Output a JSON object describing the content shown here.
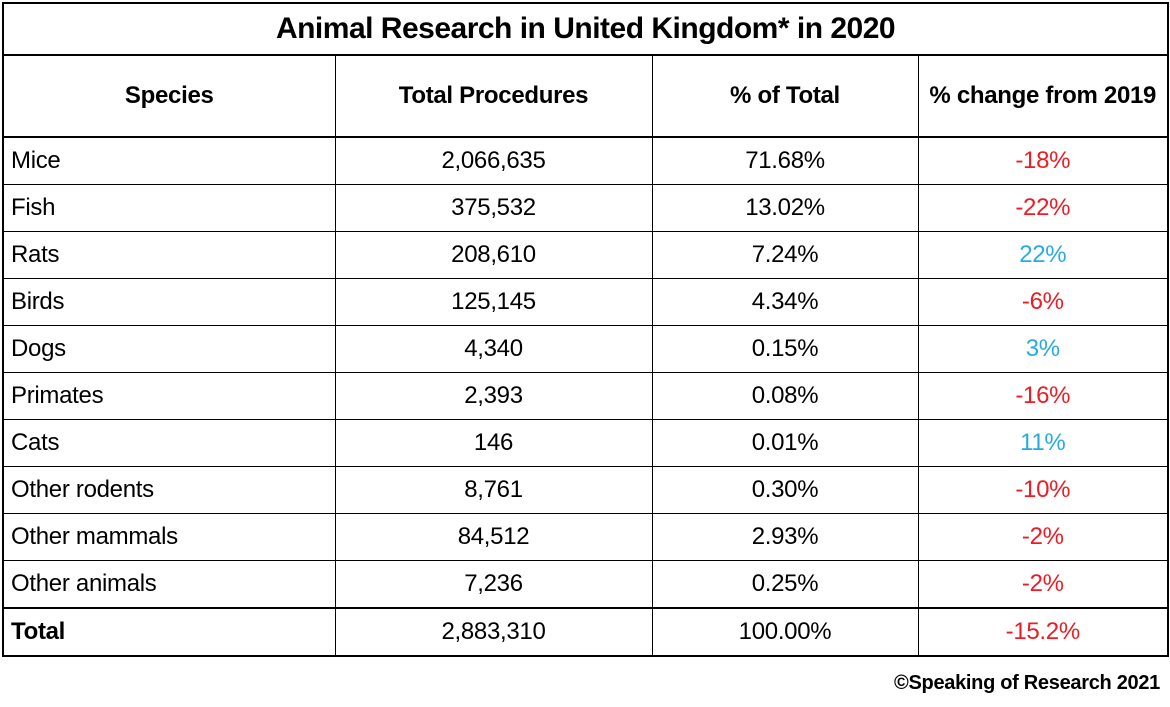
{
  "chart_data": {
    "type": "table",
    "title": "Animal Research in United Kingdom* in 2020",
    "columns": [
      "Species",
      "Total Procedures",
      "% of Total",
      "% change from 2019"
    ],
    "rows": [
      {
        "species": "Mice",
        "procedures": "2,066,635",
        "pct_of_total": "71.68%",
        "change": "-18%",
        "change_color": "red",
        "is_total": false
      },
      {
        "species": "Fish",
        "procedures": "375,532",
        "pct_of_total": "13.02%",
        "change": "-22%",
        "change_color": "red",
        "is_total": false
      },
      {
        "species": "Rats",
        "procedures": "208,610",
        "pct_of_total": "7.24%",
        "change": "22%",
        "change_color": "blue",
        "is_total": false
      },
      {
        "species": "Birds",
        "procedures": "125,145",
        "pct_of_total": "4.34%",
        "change": "-6%",
        "change_color": "red",
        "is_total": false
      },
      {
        "species": "Dogs",
        "procedures": "4,340",
        "pct_of_total": "0.15%",
        "change": "3%",
        "change_color": "blue",
        "is_total": false
      },
      {
        "species": "Primates",
        "procedures": "2,393",
        "pct_of_total": "0.08%",
        "change": "-16%",
        "change_color": "red",
        "is_total": false
      },
      {
        "species": "Cats",
        "procedures": "146",
        "pct_of_total": "0.01%",
        "change": "11%",
        "change_color": "blue",
        "is_total": false
      },
      {
        "species": "Other rodents",
        "procedures": "8,761",
        "pct_of_total": "0.30%",
        "change": "-10%",
        "change_color": "red",
        "is_total": false
      },
      {
        "species": "Other mammals",
        "procedures": "84,512",
        "pct_of_total": "2.93%",
        "change": "-2%",
        "change_color": "red",
        "is_total": false
      },
      {
        "species": "Other animals",
        "procedures": "7,236",
        "pct_of_total": "0.25%",
        "change": "-2%",
        "change_color": "red",
        "is_total": false
      },
      {
        "species": "Total",
        "procedures": "2,883,310",
        "pct_of_total": "100.00%",
        "change": "-15.2%",
        "change_color": "red",
        "is_total": true
      }
    ],
    "layout": {
      "grid": "on",
      "change_positive_color": "#29abe2",
      "change_negative_color": "#ed1c24",
      "text_color": "#000000",
      "background_color": "#ffffff"
    }
  },
  "footer": {
    "credit": "©Speaking of Research 2021"
  }
}
